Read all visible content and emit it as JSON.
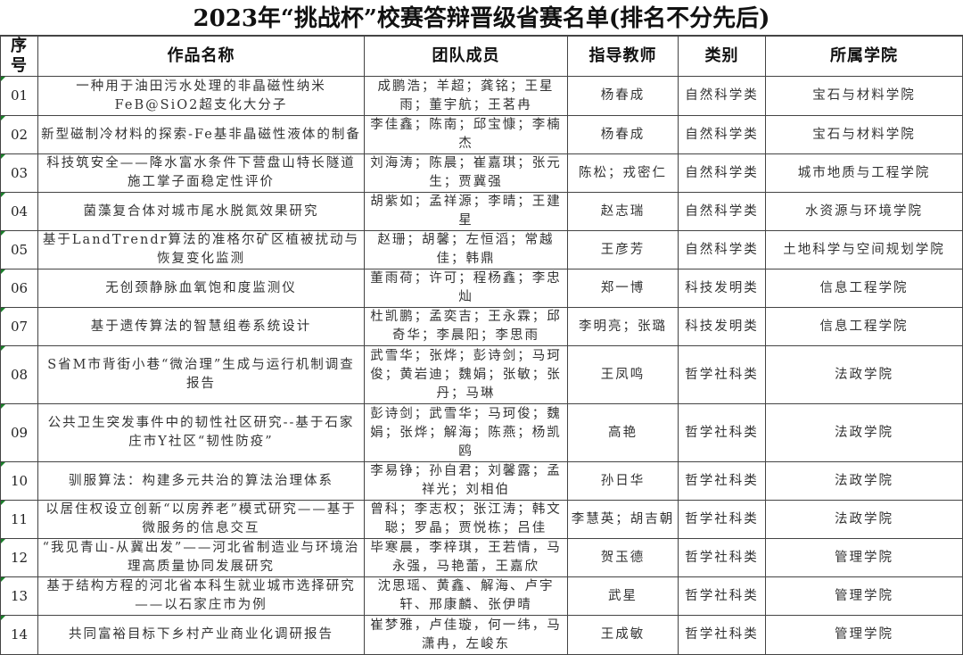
{
  "title": "2023年“挑战杯”校赛答辩晋级省赛名单(排名不分先后)",
  "columns": [
    "序号",
    "作品名称",
    "团队成员",
    "指导教师",
    "类别",
    "所属学院"
  ],
  "rows": [
    {
      "no": "01",
      "title": "一种用于油田污水处理的非晶磁性纳米FeB@SiO2超支化大分子",
      "members": "成鹏浩；羊超；龚铭；王星雨；董宇航；王茗冉",
      "advisor": "杨春成",
      "category": "自然科学类",
      "college": "宝石与材料学院"
    },
    {
      "no": "02",
      "title": "新型磁制冷材料的探索-Fe基非晶磁性液体的制备",
      "members": "李佳鑫；陈南；邱宝慷；李楠杰",
      "advisor": "杨春成",
      "category": "自然科学类",
      "college": "宝石与材料学院"
    },
    {
      "no": "03",
      "title": "科技筑安全——降水富水条件下营盘山特长隧道施工掌子面稳定性评价",
      "members": "刘海涛；陈晨；崔嘉琪；张元生；贾冀强",
      "advisor": "陈松；戎密仁",
      "category": "自然科学类",
      "college": "城市地质与工程学院"
    },
    {
      "no": "04",
      "title": "菌藻复合体对城市尾水脱氮效果研究",
      "members": "胡紫如；孟祥源；李晴；王建星",
      "advisor": "赵志瑞",
      "category": "自然科学类",
      "college": "水资源与环境学院"
    },
    {
      "no": "05",
      "title": "基于LandTrendr算法的准格尔矿区植被扰动与恢复变化监测",
      "members": "赵珊；胡馨；左恒滔；常越佳；韩鼎",
      "advisor": "王彦芳",
      "category": "自然科学类",
      "college": "土地科学与空间规划学院"
    },
    {
      "no": "06",
      "title": "无创颈静脉血氧饱和度监测仪",
      "members": "董雨荷；许可；程杨鑫；李忠灿",
      "advisor": "郑一博",
      "category": "科技发明类",
      "college": "信息工程学院"
    },
    {
      "no": "07",
      "title": "基于遗传算法的智慧组卷系统设计",
      "members": "杜凯鹏；孟奕吉；王永霖；邱奇华；李晨阳；李思雨",
      "advisor": "李明亮；张璐",
      "category": "科技发明类",
      "college": "信息工程学院"
    },
    {
      "no": "08",
      "title": "S省M市背街小巷“微治理”生成与运行机制调查报告",
      "members": "武雪华；张烨；彭诗剑；马珂俊；黄岩迪；魏娟；张敏；张丹；马琳",
      "advisor": "王凤鸣",
      "category": "哲学社科类",
      "college": "法政学院"
    },
    {
      "no": "09",
      "title": "公共卫生突发事件中的韧性社区研究--基于石家庄市Y社区“韧性防疫”",
      "members": "彭诗剑；武雪华；马珂俊；魏娟；张烨；解海；陈燕；杨凯鸥",
      "advisor": "高艳",
      "category": "哲学社科类",
      "college": "法政学院"
    },
    {
      "no": "10",
      "title": "驯服算法：构建多元共治的算法治理体系",
      "members": "李易铮；孙自君；刘馨露；孟祥光；刘相伯",
      "advisor": "孙日华",
      "category": "哲学社科类",
      "college": "法政学院"
    },
    {
      "no": "11",
      "title": "以居住权设立创新“以房养老”模式研究——基于微服务的信息交互",
      "members": "曾科；李志权；张江涛；韩文聪；罗晶；贾悦栋；吕佳",
      "advisor": "李慧英；胡吉朝",
      "category": "哲学社科类",
      "college": "法政学院"
    },
    {
      "no": "12",
      "title": "“我见青山-从冀出发”——河北省制造业与环境治理高质量协同发展研究",
      "members": "毕寒晨，李梓琪，王若情，马永强，马艳蕾，王嘉欣",
      "advisor": "贺玉德",
      "category": "哲学社科类",
      "college": "管理学院"
    },
    {
      "no": "13",
      "title": "基于结构方程的河北省本科生就业城市选择研究——以石家庄市为例",
      "members": "沈思瑶、黄鑫、解海、卢宇轩、邢康麟、张伊晴",
      "advisor": "武星",
      "category": "哲学社科类",
      "college": "管理学院"
    },
    {
      "no": "14",
      "title": "共同富裕目标下乡村产业商业化调研报告",
      "members": "崔梦雅，卢佳璇，何一纬，马潇冉，左峻东",
      "advisor": "王成敏",
      "category": "哲学社科类",
      "college": "管理学院"
    }
  ]
}
